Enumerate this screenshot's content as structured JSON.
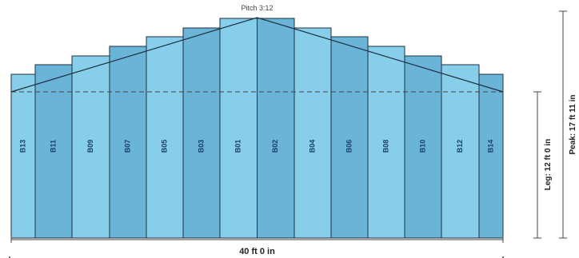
{
  "pitch_label": "Pitch 3:12",
  "width_label": "40 ft 0 in",
  "leg_label": "Leg: 12 ft 0 in",
  "peak_label": "Peak: 17 ft 11 in",
  "colors": {
    "light": "#87ceeb",
    "dark": "#6ab4d8",
    "outline": "#1f2f3f",
    "dashed": "#444444"
  },
  "panels": [
    {
      "label": "B13",
      "shade": "light"
    },
    {
      "label": "B11",
      "shade": "dark"
    },
    {
      "label": "B09",
      "shade": "light"
    },
    {
      "label": "B07",
      "shade": "dark"
    },
    {
      "label": "B05",
      "shade": "light"
    },
    {
      "label": "B03",
      "shade": "dark"
    },
    {
      "label": "B01",
      "shade": "light"
    },
    {
      "label": "B02",
      "shade": "dark"
    },
    {
      "label": "B04",
      "shade": "light"
    },
    {
      "label": "B06",
      "shade": "dark"
    },
    {
      "label": "B08",
      "shade": "light"
    },
    {
      "label": "B10",
      "shade": "dark"
    },
    {
      "label": "B12",
      "shade": "light"
    },
    {
      "label": "B14",
      "shade": "dark"
    }
  ]
}
